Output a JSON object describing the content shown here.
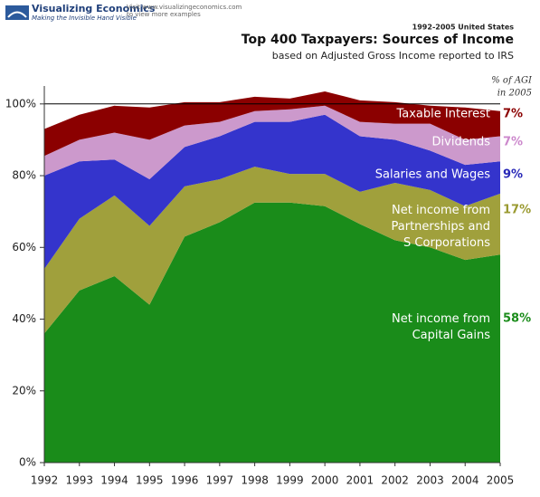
{
  "header": {
    "logo": "Visualizing Economics",
    "tagline": "Making the Invisible Hand Visible",
    "visit": "Visit www.visualizingeconomics.com",
    "visit2": "to view more examples"
  },
  "chart_data": {
    "type": "stacked_area",
    "kicker": "1992-2005 United States",
    "title": "Top 400 Taxpayers: Sources of Income",
    "subtitle": "based on Adjusted Gross Income reported to IRS",
    "share_heading": [
      "% of AGI",
      "in 2005"
    ],
    "x": [
      1992,
      1993,
      1994,
      1995,
      1996,
      1997,
      1998,
      1999,
      2000,
      2001,
      2002,
      2003,
      2004,
      2005
    ],
    "xlim": [
      1992,
      2005
    ],
    "xticks": [
      1992,
      1993,
      1994,
      1995,
      1996,
      1997,
      1998,
      1999,
      2000,
      2001,
      2002,
      2003,
      2004,
      2005
    ],
    "ylim": [
      0,
      105
    ],
    "yticks": [
      {
        "value": 0,
        "label": "0%"
      },
      {
        "value": 20,
        "label": "20%"
      },
      {
        "value": 40,
        "label": "40%"
      },
      {
        "value": 60,
        "label": "60%"
      },
      {
        "value": 80,
        "label": "80%"
      },
      {
        "value": 100,
        "label": "100%"
      }
    ],
    "series": [
      {
        "name": "Net income from\nCapital Gains",
        "color": "#1a8c1a",
        "label_color": "#1a8c1a",
        "share_label": "58%",
        "values": [
          36,
          48,
          52,
          44,
          63,
          67,
          72.5,
          72.5,
          71.5,
          66.5,
          62,
          60,
          56.5,
          58
        ]
      },
      {
        "name": "Net income from\nPartnerships and\nS Corporations",
        "color": "#a0a03c",
        "label_color": "#9a9a30",
        "share_label": "17%",
        "values": [
          18,
          20,
          22.5,
          22,
          14,
          12,
          10,
          8,
          9,
          9,
          16,
          16,
          15,
          17
        ]
      },
      {
        "name": "Salaries and Wages",
        "color": "#3434cc",
        "label_color": "#2828b8",
        "share_label": "9%",
        "values": [
          26,
          16,
          10,
          13,
          11,
          12,
          12.5,
          14.5,
          16.5,
          15.5,
          12,
          11,
          11.5,
          9
        ]
      },
      {
        "name": "Dividends",
        "color": "#cc99cc",
        "label_color": "#cc88cc",
        "share_label": "7%",
        "values": [
          5.5,
          6,
          7.5,
          11,
          6,
          4,
          3,
          3.5,
          2.5,
          4,
          4.5,
          7.5,
          7,
          7
        ]
      },
      {
        "name": "Taxable Interest",
        "color": "#8b0000",
        "label_color": "#8b0000",
        "share_label": "7%",
        "values": [
          7.5,
          7,
          7.5,
          9,
          6.5,
          5.5,
          4,
          3,
          4,
          6,
          6,
          5,
          9,
          7
        ]
      }
    ]
  }
}
